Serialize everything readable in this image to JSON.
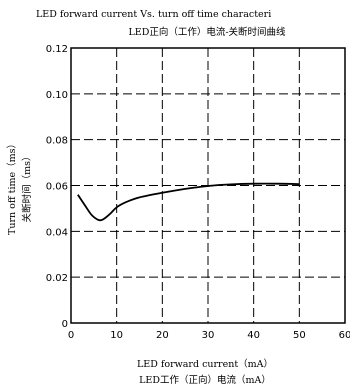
{
  "chart_data": {
    "type": "line",
    "title": "LED forward current Vs. turn off time characteri",
    "subtitle": "LED正向（工作）电流-关断时间曲线",
    "xlabel": "LED forward current（mA）",
    "xlabel_cn": "LED工作（正向）电流（mA）",
    "ylabel": "Turn off time（ms）",
    "ylabel_cn": "关断时间（ms）",
    "xlim": [
      0,
      60
    ],
    "ylim": [
      0,
      0.12
    ],
    "x_ticks": [
      "0",
      "10",
      "20",
      "30",
      "40",
      "50",
      "60"
    ],
    "y_ticks": [
      "0",
      "0.02",
      "0.04",
      "0.06",
      "0.08",
      "0.10",
      "0.12"
    ],
    "grid": true,
    "grid_style": "dashed",
    "series": [
      {
        "color": "#000000",
        "points": [
          [
            1.5,
            0.056
          ],
          [
            3,
            0.0515
          ],
          [
            4.5,
            0.0472
          ],
          [
            6,
            0.045
          ],
          [
            7,
            0.0452
          ],
          [
            8.5,
            0.0475
          ],
          [
            10,
            0.0505
          ],
          [
            12,
            0.0527
          ],
          [
            15,
            0.0548
          ],
          [
            20,
            0.0568
          ],
          [
            25,
            0.0585
          ],
          [
            30,
            0.0598
          ],
          [
            35,
            0.0605
          ],
          [
            40,
            0.0608
          ],
          [
            45,
            0.0608
          ],
          [
            50,
            0.0606
          ]
        ]
      }
    ]
  }
}
